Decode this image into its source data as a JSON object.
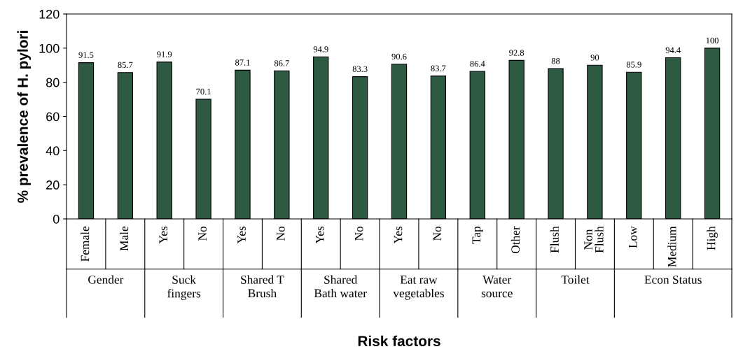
{
  "chart_data": {
    "type": "bar",
    "xlabel": "Risk factors",
    "ylabel": "% prevalence of H. pylori",
    "categories": [
      "Female",
      "Male",
      "Yes",
      "No",
      "Yes",
      "No",
      "Yes",
      "No",
      "Yes",
      "No",
      "Tap",
      "Other",
      "Flush",
      "Non\nFlush",
      "Low",
      "Medium",
      "High"
    ],
    "values": [
      91.5,
      85.7,
      91.9,
      70.1,
      87.1,
      86.7,
      94.9,
      83.3,
      90.6,
      83.7,
      86.4,
      92.8,
      88,
      90,
      85.9,
      94.4,
      100
    ],
    "color": "#2e5a44",
    "data_labels": true,
    "ylim": [
      0,
      120
    ],
    "yticks": [
      0,
      20,
      40,
      60,
      80,
      100,
      120
    ],
    "grid": false,
    "legend": false,
    "annotations": [
      "Gender",
      "Suck\nfingers",
      "Shared T\nBrush",
      "Shared\nBath water",
      "Eat raw\nvegetables",
      "Water\nsource",
      "Toilet",
      "Econ Status"
    ]
  }
}
